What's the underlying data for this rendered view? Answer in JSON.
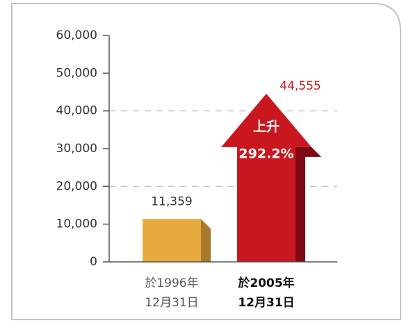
{
  "chart_data": {
    "type": "bar",
    "categories": [
      [
        "於1996年",
        "12月31日"
      ],
      [
        "於2005年",
        "12月31日"
      ]
    ],
    "values": [
      11359,
      44555
    ],
    "value_labels": [
      "11,359",
      "44,555"
    ],
    "colors": [
      "#e8a93e",
      "#c8171f"
    ],
    "annotations": [
      "上升",
      "292.2%"
    ],
    "ylim": [
      0,
      60000
    ],
    "yticks": [
      0,
      {
        "value": 10000,
        "label": "10,000"
      },
      {
        "value": 20000,
        "label": "20,000"
      },
      {
        "value": 30000,
        "label": "30,000"
      },
      {
        "value": 40000,
        "label": "40,000"
      },
      {
        "value": 50000,
        "label": "50,000"
      },
      {
        "value": 60000,
        "label": "60,000"
      }
    ],
    "grid": true
  }
}
